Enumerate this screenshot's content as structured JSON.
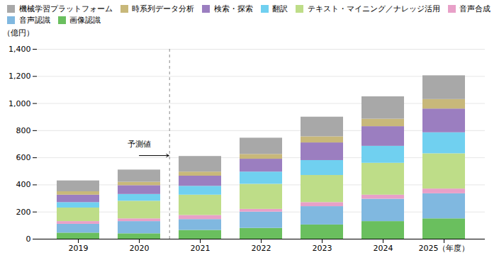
{
  "chart_data": {
    "type": "bar",
    "stacked": true,
    "categories": [
      "2019",
      "2020",
      "2021",
      "2022",
      "2023",
      "2024",
      "2025（年度）"
    ],
    "series": [
      {
        "name": "画像認識",
        "color": "#6abf5e",
        "values": [
          45,
          40,
          65,
          80,
          105,
          130,
          150
        ]
      },
      {
        "name": "音声認識",
        "color": "#80b8e0",
        "values": [
          65,
          90,
          80,
          120,
          135,
          165,
          185
        ]
      },
      {
        "name": "音声合成",
        "color": "#e8a0c8",
        "values": [
          20,
          20,
          30,
          20,
          30,
          30,
          35
        ]
      },
      {
        "name": "テキスト・マイニング／ナレッジ活用",
        "color": "#bedd88",
        "values": [
          100,
          130,
          150,
          185,
          200,
          235,
          260
        ]
      },
      {
        "name": "翻訳",
        "color": "#70d0f0",
        "values": [
          40,
          50,
          65,
          90,
          110,
          125,
          155
        ]
      },
      {
        "name": "検索・探索",
        "color": "#9b7ec0",
        "values": [
          55,
          65,
          75,
          95,
          130,
          145,
          175
        ]
      },
      {
        "name": "時系列データ分析",
        "color": "#c8b87a",
        "values": [
          25,
          25,
          30,
          35,
          45,
          55,
          70
        ]
      },
      {
        "name": "機械学習プラットフォーム",
        "color": "#a8a8a8",
        "values": [
          80,
          90,
          115,
          120,
          145,
          165,
          175
        ]
      }
    ],
    "ylabel": "（億円）",
    "ylim": [
      0,
      1400
    ],
    "yticks": [
      0,
      200,
      400,
      600,
      800,
      {
        "value": 1000,
        "label": "1,000"
      },
      {
        "value": 1200,
        "label": "1,200"
      },
      {
        "value": 1400,
        "label": "1,400"
      }
    ],
    "grid": true,
    "legend": "top",
    "annotations": [
      {
        "text": "予測値",
        "x": [
          "2020",
          "2021"
        ]
      }
    ]
  }
}
